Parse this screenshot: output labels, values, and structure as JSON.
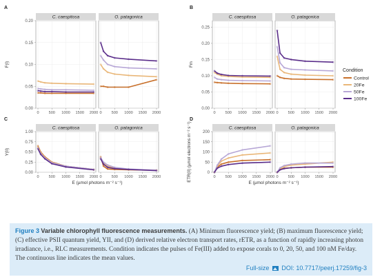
{
  "figure": {
    "xlabel": "E (µmol photons m⁻² s⁻¹)",
    "legend": {
      "title": "Condition",
      "entries": [
        {
          "name": "Control",
          "color": "#c8702b"
        },
        {
          "name": "20Fe",
          "color": "#e9b677"
        },
        {
          "name": "50Fe",
          "color": "#b7a7d6"
        },
        {
          "name": "100Fe",
          "color": "#5a2d8a"
        }
      ]
    }
  },
  "chart_data": [
    {
      "panel": "A",
      "type": "line",
      "ylabel": "F(I)",
      "ylim": [
        0.0,
        0.2
      ],
      "yticks": [
        "0.00",
        "0.05",
        "0.10",
        "0.15",
        "0.20"
      ],
      "xlim": [
        0,
        2000
      ],
      "xticks": [
        "0",
        "500",
        "1000",
        "1500",
        "2000"
      ],
      "facets": [
        {
          "title": "C. caespitosa",
          "x": [
            0,
            100,
            250,
            500,
            1000,
            2000
          ],
          "series": [
            {
              "name": "Control",
              "values": [
                0.035,
                0.035,
                0.034,
                0.034,
                0.034,
                0.034
              ]
            },
            {
              "name": "20Fe",
              "values": [
                0.062,
                0.06,
                0.058,
                0.057,
                0.056,
                0.055
              ]
            },
            {
              "name": "50Fe",
              "values": [
                0.045,
                0.044,
                0.043,
                0.042,
                0.042,
                0.041
              ]
            },
            {
              "name": "100Fe",
              "values": [
                0.04,
                0.039,
                0.038,
                0.038,
                0.037,
                0.037
              ]
            }
          ]
        },
        {
          "title": "O. patagonica",
          "x": [
            0,
            100,
            250,
            500,
            1000,
            2000
          ],
          "series": [
            {
              "name": "Control",
              "values": [
                0.05,
                0.05,
                0.048,
                0.048,
                0.048,
                0.065
              ]
            },
            {
              "name": "20Fe",
              "values": [
                0.1,
                0.09,
                0.082,
                0.078,
                0.075,
                0.072
              ]
            },
            {
              "name": "50Fe",
              "values": [
                0.12,
                0.11,
                0.1,
                0.095,
                0.092,
                0.09
              ]
            },
            {
              "name": "100Fe",
              "values": [
                0.15,
                0.13,
                0.12,
                0.115,
                0.112,
                0.108
              ]
            }
          ]
        }
      ]
    },
    {
      "panel": "B",
      "type": "line",
      "ylabel": "Fm",
      "ylim": [
        0.0,
        0.27
      ],
      "yticks": [
        "0.00",
        "0.05",
        "0.10",
        "0.15",
        "0.20",
        "0.25"
      ],
      "xlim": [
        0,
        2000
      ],
      "xticks": [
        "0",
        "500",
        "1000",
        "1500",
        "2000"
      ],
      "facets": [
        {
          "title": "C. caespitosa",
          "x": [
            0,
            100,
            250,
            500,
            1000,
            2000
          ],
          "series": [
            {
              "name": "Control",
              "values": [
                0.08,
                0.079,
                0.078,
                0.077,
                0.076,
                0.075
              ]
            },
            {
              "name": "20Fe",
              "values": [
                0.11,
                0.105,
                0.1,
                0.098,
                0.096,
                0.095
              ]
            },
            {
              "name": "50Fe",
              "values": [
                0.095,
                0.09,
                0.088,
                0.086,
                0.085,
                0.084
              ]
            },
            {
              "name": "100Fe",
              "values": [
                0.115,
                0.108,
                0.104,
                0.101,
                0.1,
                0.099
              ]
            }
          ]
        },
        {
          "title": "O. patagonica",
          "x": [
            0,
            100,
            250,
            500,
            1000,
            2000
          ],
          "series": [
            {
              "name": "Control",
              "values": [
                0.1,
                0.095,
                0.092,
                0.09,
                0.089,
                0.088
              ]
            },
            {
              "name": "20Fe",
              "values": [
                0.16,
                0.12,
                0.11,
                0.105,
                0.102,
                0.1
              ]
            },
            {
              "name": "50Fe",
              "values": [
                0.19,
                0.14,
                0.125,
                0.12,
                0.118,
                0.115
              ]
            },
            {
              "name": "100Fe",
              "values": [
                0.24,
                0.17,
                0.155,
                0.15,
                0.145,
                0.142
              ]
            }
          ]
        }
      ]
    },
    {
      "panel": "C",
      "type": "line",
      "ylabel": "Y(II)",
      "ylim": [
        0.0,
        1.0
      ],
      "yticks": [
        "0.00",
        "0.25",
        "0.50",
        "0.75",
        "1.00"
      ],
      "xlim": [
        0,
        2000
      ],
      "xticks": [
        "0",
        "500",
        "1000",
        "1500",
        "2000"
      ],
      "facets": [
        {
          "title": "C. caespitosa",
          "x": [
            0,
            100,
            250,
            500,
            1000,
            2000
          ],
          "series": [
            {
              "name": "Control",
              "values": [
                0.65,
                0.5,
                0.38,
                0.25,
                0.15,
                0.07
              ]
            },
            {
              "name": "20Fe",
              "values": [
                0.62,
                0.48,
                0.36,
                0.24,
                0.14,
                0.06
              ]
            },
            {
              "name": "50Fe",
              "values": [
                0.6,
                0.46,
                0.35,
                0.23,
                0.15,
                0.07
              ]
            },
            {
              "name": "100Fe",
              "values": [
                0.58,
                0.44,
                0.33,
                0.21,
                0.13,
                0.06
              ]
            }
          ]
        },
        {
          "title": "O. patagonica",
          "x": [
            0,
            100,
            250,
            500,
            1000,
            2000
          ],
          "series": [
            {
              "name": "Control",
              "values": [
                0.38,
                0.15,
                0.08,
                0.07,
                0.06,
                0.05
              ]
            },
            {
              "name": "20Fe",
              "values": [
                0.35,
                0.22,
                0.15,
                0.1,
                0.07,
                0.05
              ]
            },
            {
              "name": "50Fe",
              "values": [
                0.36,
                0.25,
                0.18,
                0.12,
                0.08,
                0.05
              ]
            },
            {
              "name": "100Fe",
              "values": [
                0.33,
                0.2,
                0.12,
                0.09,
                0.07,
                0.04
              ]
            }
          ]
        }
      ]
    },
    {
      "panel": "D",
      "type": "line",
      "ylabel": "ETR(II) (µmol electrons m⁻² s⁻¹)",
      "ylim": [
        0,
        200
      ],
      "yticks": [
        "0",
        "50",
        "100",
        "150",
        "200"
      ],
      "xlim": [
        0,
        2000
      ],
      "xticks": [
        "0",
        "500",
        "1000",
        "1500",
        "2000"
      ],
      "facets": [
        {
          "title": "C. caespitosa",
          "x": [
            0,
            100,
            250,
            500,
            1000,
            2000
          ],
          "series": [
            {
              "name": "Control",
              "values": [
                0,
                25,
                40,
                50,
                58,
                62
              ]
            },
            {
              "name": "20Fe",
              "values": [
                0,
                30,
                55,
                70,
                85,
                95
              ]
            },
            {
              "name": "50Fe",
              "values": [
                0,
                35,
                65,
                90,
                110,
                130
              ]
            },
            {
              "name": "100Fe",
              "values": [
                0,
                20,
                30,
                38,
                45,
                50
              ]
            }
          ]
        },
        {
          "title": "O. patagonica",
          "x": [
            0,
            100,
            250,
            500,
            1000,
            2000
          ],
          "series": [
            {
              "name": "Control",
              "values": [
                0,
                15,
                20,
                22,
                25,
                25
              ]
            },
            {
              "name": "20Fe",
              "values": [
                0,
                18,
                28,
                35,
                40,
                50
              ]
            },
            {
              "name": "50Fe",
              "values": [
                0,
                22,
                33,
                40,
                45,
                45
              ]
            },
            {
              "name": "100Fe",
              "values": [
                0,
                12,
                18,
                22,
                25,
                28
              ]
            }
          ]
        }
      ]
    }
  ],
  "caption": {
    "fig_label": "Figure 3",
    "title": "Variable chlorophyll fluorescence measurements.",
    "text": "(A) Minimum fluorescence yield; (B) maximum fluorescence yield; (C) effective PSII quantum yield, YII, and (D) derived relative electron transport rates, rETR, as a function of rapidly increasing photon irradiance, i.e., RLC measurements. Condition indicates the pulses of Fe(III) added to expose corals to 0, 20, 50, and 100 nM Fe/day. The continuous line indicates the mean values.",
    "footer_fullsize": "Full-size",
    "footer_doi": "DOI: 10.7717/peerj.17259/fig-3"
  }
}
